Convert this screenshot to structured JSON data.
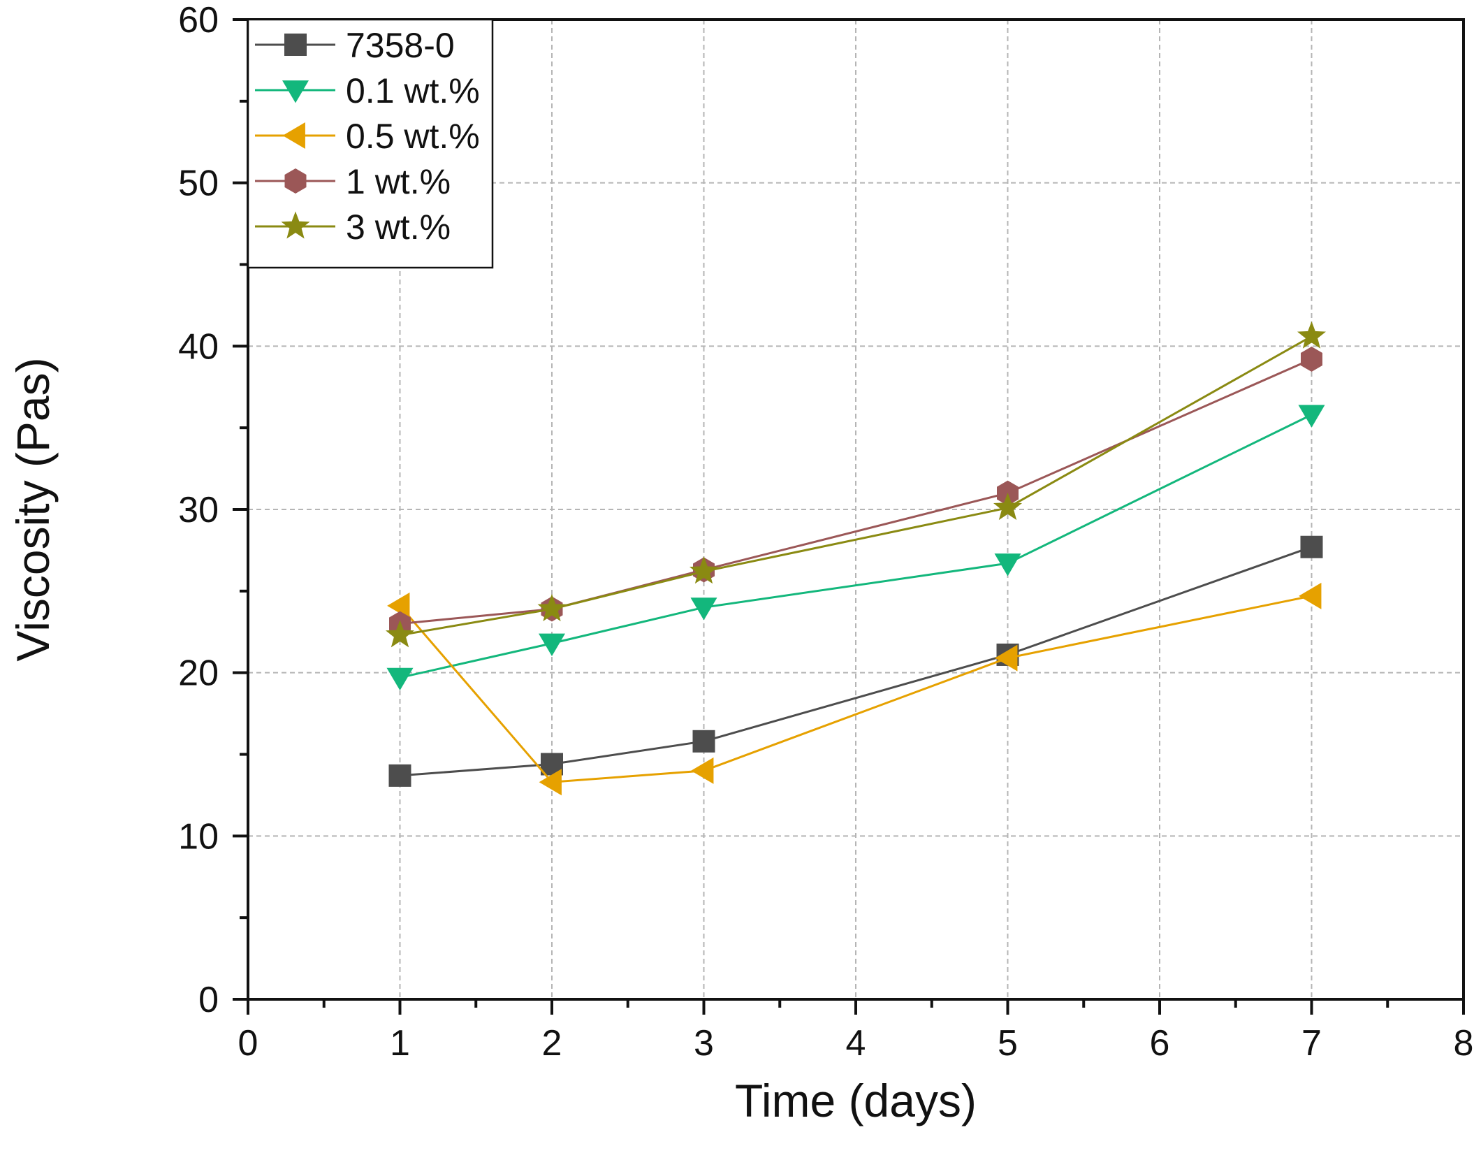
{
  "chart_data": {
    "type": "line",
    "title": "",
    "xlabel": "Time (days)",
    "ylabel": "Viscosity (Pas)",
    "xlim": [
      0,
      8
    ],
    "ylim": [
      0,
      60
    ],
    "xticks": [
      0,
      1,
      2,
      3,
      4,
      5,
      6,
      7,
      8
    ],
    "yticks": [
      0,
      10,
      20,
      30,
      40,
      50,
      60
    ],
    "xtick_labels": [
      "0",
      "1",
      "2",
      "3",
      "4",
      "5",
      "6",
      "7",
      "8"
    ],
    "ytick_labels": [
      "0",
      "10",
      "20",
      "30",
      "40",
      "50",
      "60"
    ],
    "grid": true,
    "legend_position": "top-left",
    "x": [
      1,
      2,
      3,
      5,
      7
    ],
    "series": [
      {
        "name": "7358-0",
        "values": [
          13.7,
          14.4,
          15.8,
          21.1,
          27.7
        ],
        "color": "#4d4d4d",
        "marker": "square"
      },
      {
        "name": "0.1 wt.%",
        "values": [
          19.7,
          21.8,
          24.0,
          26.7,
          35.8
        ],
        "color": "#13b77c",
        "marker": "triangle-down"
      },
      {
        "name": "0.5 wt.%",
        "values": [
          24.1,
          13.3,
          14.0,
          20.9,
          24.7
        ],
        "color": "#e6a100",
        "marker": "triangle-left"
      },
      {
        "name": "1 wt.%",
        "values": [
          23.0,
          23.9,
          26.3,
          31.0,
          39.2
        ],
        "color": "#9b5757",
        "marker": "hexagon"
      },
      {
        "name": "3 wt.%",
        "values": [
          22.3,
          23.9,
          26.2,
          30.1,
          40.6
        ],
        "color": "#8a8a12",
        "marker": "star"
      }
    ]
  }
}
